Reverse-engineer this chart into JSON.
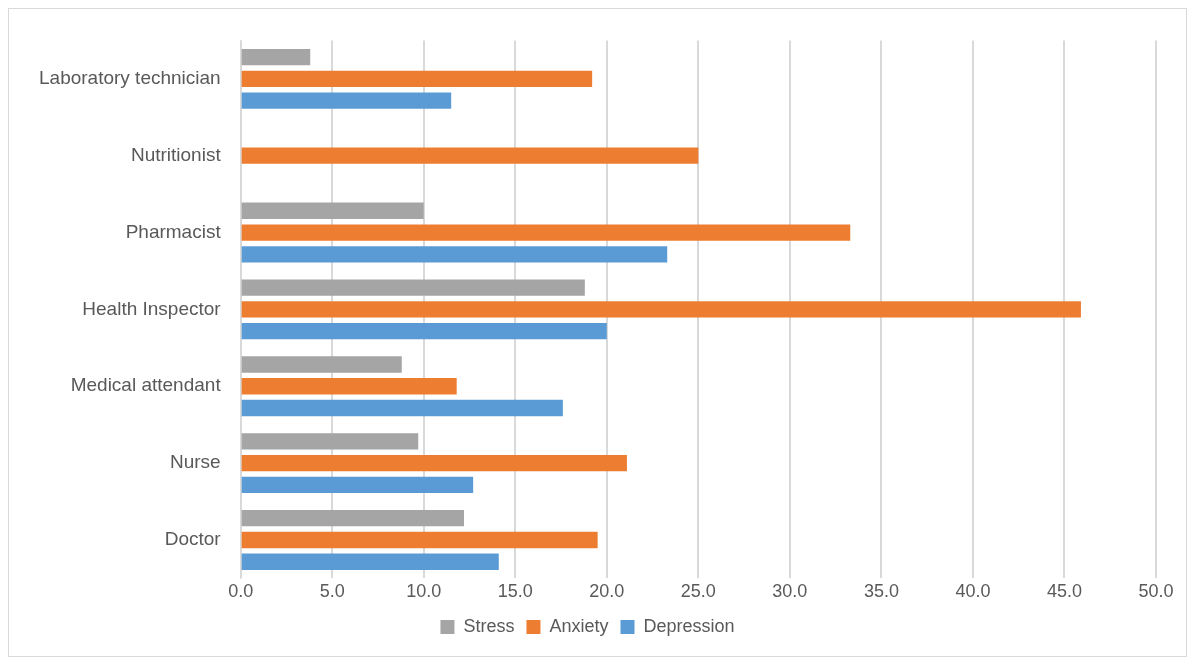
{
  "chart_data": {
    "type": "bar",
    "orientation": "horizontal",
    "categories": [
      "Laboratory technician",
      "Nutritionist",
      "Pharmacist",
      "Health Inspector",
      "Medical attendant",
      "Nurse",
      "Doctor"
    ],
    "series": [
      {
        "name": "Stress",
        "color": "#a5a5a5",
        "values": [
          3.8,
          null,
          10.0,
          18.8,
          8.8,
          9.7,
          12.2
        ]
      },
      {
        "name": "Anxiety",
        "color": "#ed7d31",
        "values": [
          19.2,
          25.0,
          33.3,
          45.9,
          11.8,
          21.1,
          19.5
        ]
      },
      {
        "name": "Depression",
        "color": "#5b9bd5",
        "values": [
          11.5,
          null,
          23.3,
          20.0,
          17.6,
          12.7,
          14.1
        ]
      }
    ],
    "xlim": [
      0,
      50
    ],
    "xticks": [
      {
        "value": 0,
        "label": "0.0"
      },
      {
        "value": 5,
        "label": "5.0"
      },
      {
        "value": 10,
        "label": "10.0"
      },
      {
        "value": 15,
        "label": "15.0"
      },
      {
        "value": 20,
        "label": "20.0"
      },
      {
        "value": 25,
        "label": "25.0"
      },
      {
        "value": 30,
        "label": "30.0"
      },
      {
        "value": 35,
        "label": "35.0"
      },
      {
        "value": 40,
        "label": "40.0"
      },
      {
        "value": 45,
        "label": "45.0"
      },
      {
        "value": 50,
        "label": "50.0"
      }
    ],
    "grid": "x",
    "legend": "bottom"
  }
}
